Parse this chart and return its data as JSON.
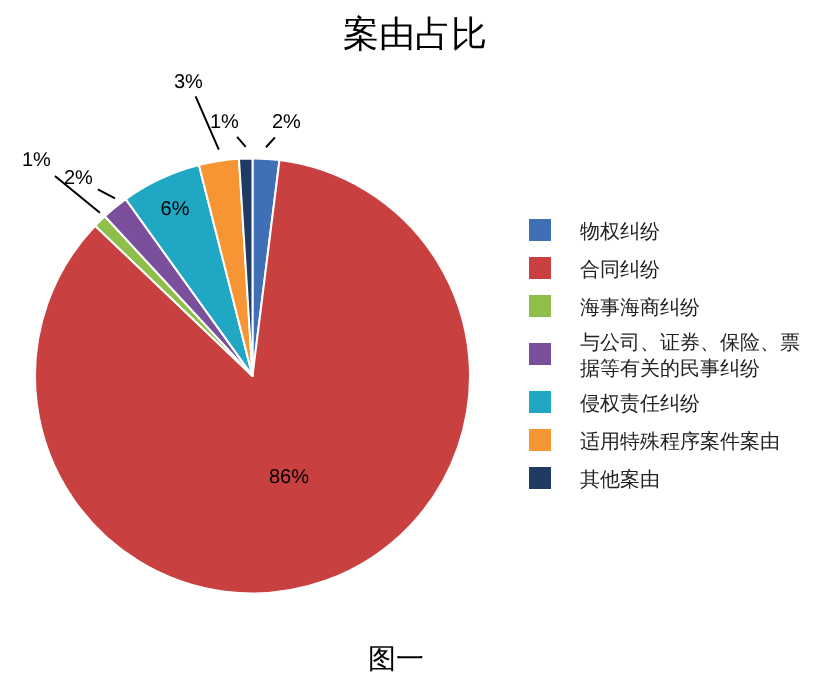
{
  "chart_data": {
    "type": "pie",
    "title": "案由占比",
    "categories": [
      "物权纠纷",
      "合同纠纷",
      "海事海商纠纷",
      "与公司、证券、保险、票据等有关的民事纠纷",
      "侵权责任纠纷",
      "适用特殊程序案件案由",
      "其他案由"
    ],
    "values": [
      2,
      86,
      1,
      2,
      6,
      3,
      1
    ],
    "value_labels": [
      "2%",
      "86%",
      "1%",
      "2%",
      "6%",
      "3%",
      "1%"
    ],
    "colors": [
      "#3f6fb5",
      "#c8403f",
      "#8fbf4a",
      "#7a4f9c",
      "#1fa7c4",
      "#f79433",
      "#1f3b63"
    ],
    "legend": "right",
    "annotations": [
      "图一"
    ]
  }
}
